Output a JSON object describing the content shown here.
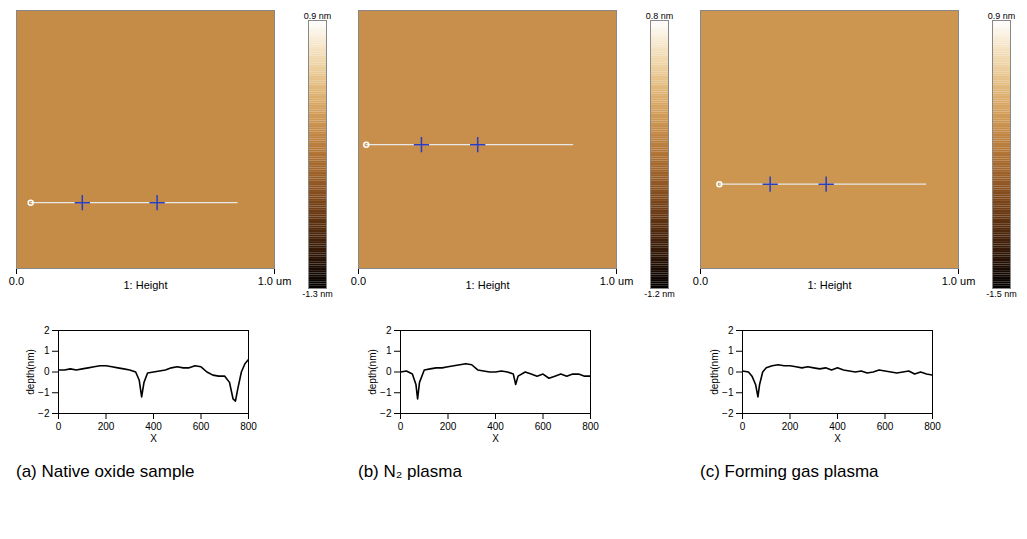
{
  "chart_data": [
    {
      "type": "line",
      "title": "(a) Native oxide sample",
      "xlabel": "X",
      "ylabel": "depth(nm)",
      "color": "#000000",
      "xlim": [
        0,
        800
      ],
      "ylim": [
        -2,
        2
      ],
      "xticks": [
        0,
        200,
        400,
        600,
        800
      ],
      "yticks": [
        -2,
        -1,
        0,
        1,
        2
      ],
      "x": [
        0,
        25,
        50,
        75,
        100,
        125,
        150,
        175,
        200,
        225,
        250,
        275,
        300,
        325,
        340,
        350,
        360,
        375,
        400,
        425,
        450,
        475,
        500,
        525,
        550,
        575,
        600,
        625,
        650,
        675,
        700,
        720,
        735,
        745,
        755,
        770,
        785,
        800
      ],
      "values": [
        0.1,
        0.1,
        0.15,
        0.1,
        0.15,
        0.2,
        0.25,
        0.3,
        0.3,
        0.25,
        0.2,
        0.15,
        0.1,
        0.0,
        -0.4,
        -1.2,
        -0.5,
        -0.05,
        0.0,
        0.05,
        0.1,
        0.2,
        0.25,
        0.2,
        0.2,
        0.3,
        0.25,
        0.0,
        -0.15,
        -0.2,
        -0.2,
        -0.5,
        -1.3,
        -1.4,
        -0.8,
        0.0,
        0.4,
        0.6
      ],
      "image": {
        "label": "1: Height",
        "xlim": [
          0,
          1
        ],
        "ylim": [
          0,
          1
        ],
        "xticks": [
          {
            "value": 0,
            "label": "0.0"
          },
          {
            "value": 1,
            "label": "1.0 um"
          }
        ],
        "scan_line": {
          "x": [
            0.055,
            0.855
          ],
          "y": 0.255,
          "cursors": [
            0.255,
            0.545
          ]
        },
        "colorbar": {
          "zlim": [
            -1.3,
            0.9
          ],
          "ticks": [
            {
              "value": 0.9,
              "label": "0.9 nm"
            },
            {
              "value": -1.3,
              "label": "-1.3 nm"
            }
          ]
        }
      }
    },
    {
      "type": "line",
      "title": "(b) N₂ plasma",
      "xlabel": "X",
      "ylabel": "depth(nm)",
      "color": "#000000",
      "xlim": [
        0,
        800
      ],
      "ylim": [
        -2,
        2
      ],
      "xticks": [
        0,
        200,
        400,
        600,
        800
      ],
      "yticks": [
        -2,
        -1,
        0,
        1,
        2
      ],
      "x": [
        0,
        25,
        50,
        65,
        72,
        80,
        100,
        125,
        150,
        175,
        200,
        225,
        250,
        275,
        300,
        325,
        350,
        375,
        400,
        425,
        450,
        475,
        485,
        495,
        525,
        550,
        575,
        600,
        625,
        650,
        675,
        700,
        725,
        750,
        775,
        800
      ],
      "values": [
        0.0,
        0.05,
        -0.1,
        -0.6,
        -1.3,
        -0.5,
        0.1,
        0.15,
        0.2,
        0.2,
        0.25,
        0.3,
        0.35,
        0.4,
        0.35,
        0.1,
        0.05,
        0.0,
        0.0,
        0.05,
        0.0,
        -0.1,
        -0.6,
        -0.2,
        0.0,
        -0.1,
        -0.2,
        -0.1,
        -0.3,
        -0.2,
        -0.1,
        -0.2,
        -0.1,
        -0.1,
        -0.2,
        -0.2
      ],
      "image": {
        "label": "1: Height",
        "xlim": [
          0,
          1
        ],
        "ylim": [
          0,
          1
        ],
        "xticks": [
          {
            "value": 0,
            "label": "0.0"
          },
          {
            "value": 1,
            "label": "1.0 um"
          }
        ],
        "scan_line": {
          "x": [
            0.03,
            0.83
          ],
          "y": 0.48,
          "cursors": [
            0.244,
            0.462
          ]
        },
        "colorbar": {
          "zlim": [
            -1.2,
            0.8
          ],
          "ticks": [
            {
              "value": 0.8,
              "label": "0.8 nm"
            },
            {
              "value": -1.2,
              "label": "-1.2 nm"
            }
          ]
        }
      }
    },
    {
      "type": "line",
      "title": "(c) Forming gas plasma",
      "xlabel": "X",
      "ylabel": "depth(nm)",
      "color": "#000000",
      "xlim": [
        0,
        800
      ],
      "ylim": [
        -2,
        2
      ],
      "xticks": [
        0,
        200,
        400,
        600,
        800
      ],
      "yticks": [
        -2,
        -1,
        0,
        1,
        2
      ],
      "x": [
        0,
        25,
        40,
        55,
        65,
        72,
        85,
        100,
        125,
        150,
        175,
        200,
        225,
        250,
        275,
        300,
        325,
        350,
        375,
        400,
        425,
        450,
        475,
        500,
        525,
        550,
        575,
        600,
        625,
        650,
        675,
        700,
        725,
        750,
        775,
        800
      ],
      "values": [
        0.05,
        0.0,
        -0.2,
        -0.6,
        -1.2,
        -0.6,
        0.0,
        0.2,
        0.3,
        0.35,
        0.3,
        0.3,
        0.25,
        0.2,
        0.25,
        0.2,
        0.15,
        0.2,
        0.1,
        0.2,
        0.1,
        0.05,
        0.0,
        0.05,
        -0.05,
        0.0,
        0.1,
        0.05,
        0.0,
        -0.05,
        0.0,
        0.05,
        -0.1,
        0.0,
        -0.1,
        -0.15
      ],
      "image": {
        "label": "1: Height",
        "xlim": [
          0,
          1
        ],
        "ylim": [
          0,
          1
        ],
        "xticks": [
          {
            "value": 0,
            "label": "0.0"
          },
          {
            "value": 1,
            "label": "1.0 um"
          }
        ],
        "scan_line": {
          "x": [
            0.073,
            0.873
          ],
          "y": 0.327,
          "cursors": [
            0.27,
            0.487
          ]
        },
        "colorbar": {
          "zlim": [
            -1.5,
            0.9
          ],
          "ticks": [
            {
              "value": 0.9,
              "label": "0.9 nm"
            },
            {
              "value": -1.5,
              "label": "-1.5 nm"
            }
          ]
        }
      }
    }
  ]
}
